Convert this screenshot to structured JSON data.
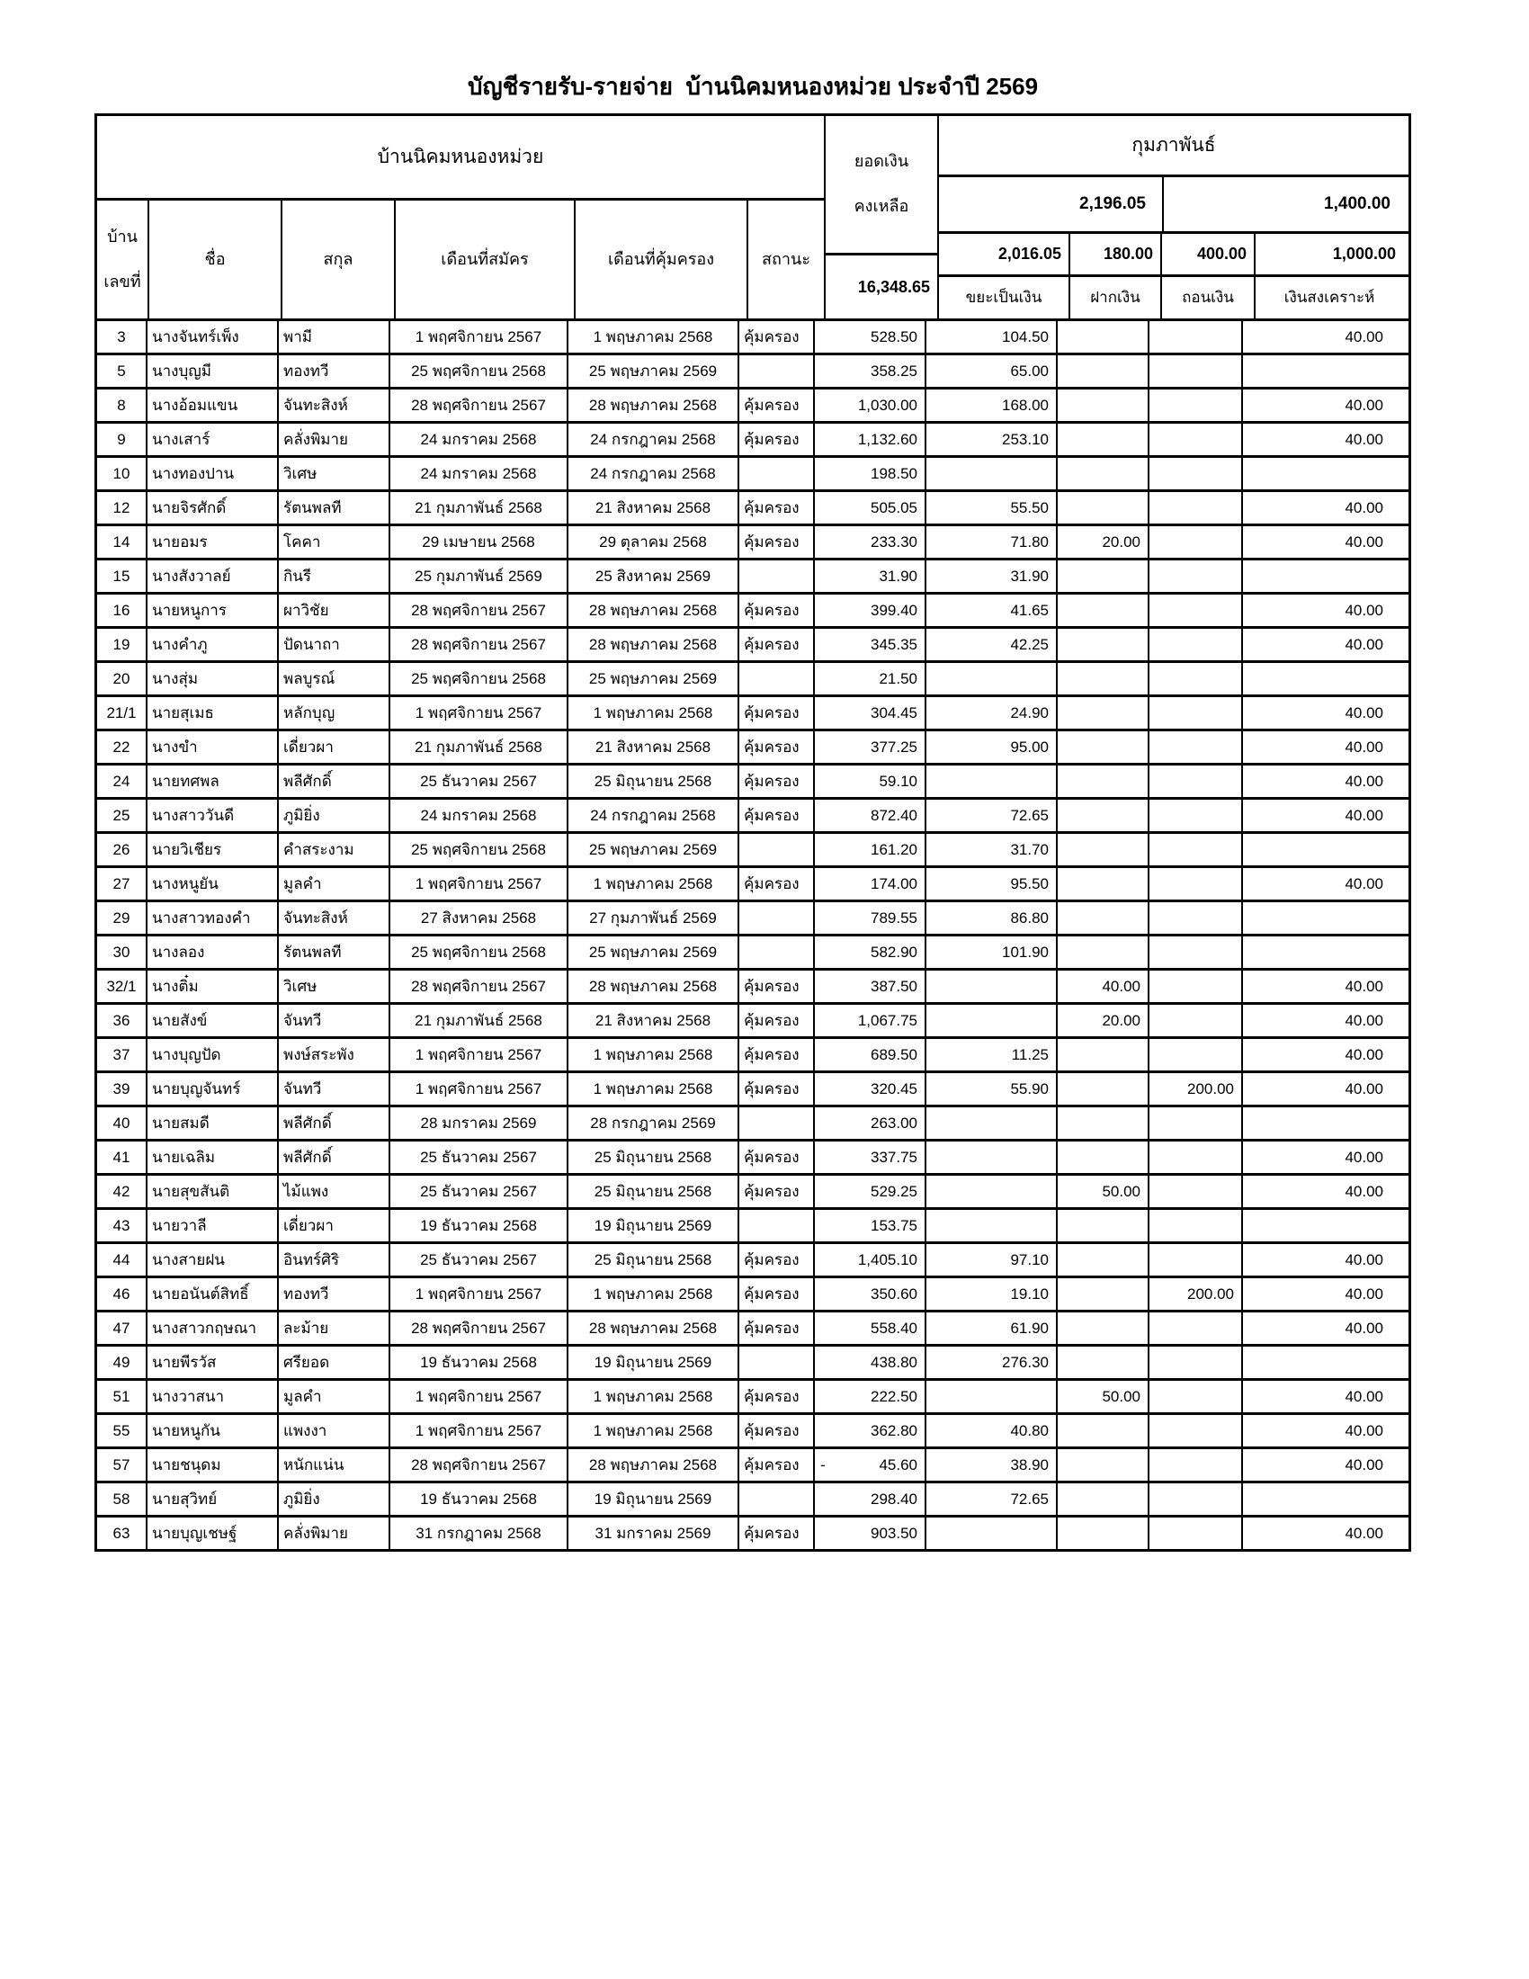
{
  "title": "บัญชีรายรับ-รายจ่าย  บ้านนิคมหนองหม่วย ประจำปี 2569",
  "table": {
    "group_header": "บ้านนิคมหนองหม่วย",
    "columns": {
      "house_line1": "บ้าน",
      "house_line2": "เลขที่",
      "first_name": "ชื่อ",
      "surname": "สกุล",
      "apply_month": "เดือนที่สมัคร",
      "cover_month": "เดือนที่คุ้มครอง",
      "status": "สถานะ"
    },
    "balance": {
      "label_line1": "ยอดเงิน",
      "label_line2": "คงเหลือ",
      "total": "16,348.65"
    },
    "month": {
      "name": "กุมภาพันธ์",
      "income_total": "2,196.05",
      "expense_total": "1,400.00",
      "sub": [
        "2,016.05",
        "180.00",
        "400.00",
        "1,000.00"
      ],
      "labels": [
        "ขยะเป็นเงิน",
        "ฝากเงิน",
        "ถอนเงิน",
        "เงินสงเคราะห์"
      ]
    },
    "status_value_protected": "คุ้มครอง",
    "rows": [
      {
        "no": "3",
        "first": "นางจันทร์เพ็ง",
        "last": "พามี",
        "apply": "1 พฤศจิกายน 2567",
        "cover": "1 พฤษภาคม 2568",
        "status": "คุ้มครอง",
        "balance_prefix": "",
        "balance": "528.50",
        "waste": "104.50",
        "deposit": "",
        "withdraw": "",
        "welfare": "40.00"
      },
      {
        "no": "5",
        "first": "นางบุญมี",
        "last": "ทองทวี",
        "apply": "25 พฤศจิกายน 2568",
        "cover": "25 พฤษภาคม 2569",
        "status": "",
        "balance_prefix": "",
        "balance": "358.25",
        "waste": "65.00",
        "deposit": "",
        "withdraw": "",
        "welfare": ""
      },
      {
        "no": "8",
        "first": "นางอ้อมแขน",
        "last": "จันทะสิงห์",
        "apply": "28 พฤศจิกายน 2567",
        "cover": "28 พฤษภาคม 2568",
        "status": "คุ้มครอง",
        "balance_prefix": "",
        "balance": "1,030.00",
        "waste": "168.00",
        "deposit": "",
        "withdraw": "",
        "welfare": "40.00"
      },
      {
        "no": "9",
        "first": "นางเสาร์",
        "last": "คลั่งพิมาย",
        "apply": "24 มกราคม 2568",
        "cover": "24 กรกฎาคม 2568",
        "status": "คุ้มครอง",
        "balance_prefix": "",
        "balance": "1,132.60",
        "waste": "253.10",
        "deposit": "",
        "withdraw": "",
        "welfare": "40.00"
      },
      {
        "no": "10",
        "first": "นางทองปาน",
        "last": "วิเศษ",
        "apply": "24 มกราคม 2568",
        "cover": "24 กรกฎาคม 2568",
        "status": "",
        "balance_prefix": "",
        "balance": "198.50",
        "waste": "",
        "deposit": "",
        "withdraw": "",
        "welfare": ""
      },
      {
        "no": "12",
        "first": "นายจิรศักดิ์",
        "last": "รัตนพลที",
        "apply": "21 กุมภาพันธ์ 2568",
        "cover": "21 สิงหาคม 2568",
        "status": "คุ้มครอง",
        "balance_prefix": "",
        "balance": "505.05",
        "waste": "55.50",
        "deposit": "",
        "withdraw": "",
        "welfare": "40.00"
      },
      {
        "no": "14",
        "first": "นายอมร",
        "last": "โคคา",
        "apply": "29 เมษายน 2568",
        "cover": "29 ตุลาคม 2568",
        "status": "คุ้มครอง",
        "balance_prefix": "",
        "balance": "233.30",
        "waste": "71.80",
        "deposit": "20.00",
        "withdraw": "",
        "welfare": "40.00"
      },
      {
        "no": "15",
        "first": "นางสังวาลย์",
        "last": "กินรี",
        "apply": "25 กุมภาพันธ์ 2569",
        "cover": "25 สิงหาคม 2569",
        "status": "",
        "balance_prefix": "",
        "balance": "31.90",
        "waste": "31.90",
        "deposit": "",
        "withdraw": "",
        "welfare": ""
      },
      {
        "no": "16",
        "first": "นายหนูการ",
        "last": "ผาวิชัย",
        "apply": "28 พฤศจิกายน 2567",
        "cover": "28 พฤษภาคม 2568",
        "status": "คุ้มครอง",
        "balance_prefix": "",
        "balance": "399.40",
        "waste": "41.65",
        "deposit": "",
        "withdraw": "",
        "welfare": "40.00"
      },
      {
        "no": "19",
        "first": "นางคำภู",
        "last": "ปัดนาถา",
        "apply": "28 พฤศจิกายน 2567",
        "cover": "28 พฤษภาคม 2568",
        "status": "คุ้มครอง",
        "balance_prefix": "",
        "balance": "345.35",
        "waste": "42.25",
        "deposit": "",
        "withdraw": "",
        "welfare": "40.00"
      },
      {
        "no": "20",
        "first": "นางสุ่ม",
        "last": "พลบูรณ์",
        "apply": "25 พฤศจิกายน 2568",
        "cover": "25 พฤษภาคม 2569",
        "status": "",
        "balance_prefix": "",
        "balance": "21.50",
        "waste": "",
        "deposit": "",
        "withdraw": "",
        "welfare": ""
      },
      {
        "no": "21/1",
        "first": "นายสุเมธ",
        "last": "หลักบุญ",
        "apply": "1 พฤศจิกายน 2567",
        "cover": "1 พฤษภาคม 2568",
        "status": "คุ้มครอง",
        "balance_prefix": "",
        "balance": "304.45",
        "waste": "24.90",
        "deposit": "",
        "withdraw": "",
        "welfare": "40.00"
      },
      {
        "no": "22",
        "first": "นางขำ",
        "last": "เดี่ยวผา",
        "apply": "21 กุมภาพันธ์ 2568",
        "cover": "21 สิงหาคม 2568",
        "status": "คุ้มครอง",
        "balance_prefix": "",
        "balance": "377.25",
        "waste": "95.00",
        "deposit": "",
        "withdraw": "",
        "welfare": "40.00"
      },
      {
        "no": "24",
        "first": "นายทศพล",
        "last": "พลีศักดิ์",
        "apply": "25 ธันวาคม 2567",
        "cover": "25 มิถุนายน 2568",
        "status": "คุ้มครอง",
        "balance_prefix": "",
        "balance": "59.10",
        "waste": "",
        "deposit": "",
        "withdraw": "",
        "welfare": "40.00"
      },
      {
        "no": "25",
        "first": "นางสาววันดี",
        "last": "ภูมิยิ่ง",
        "apply": "24 มกราคม 2568",
        "cover": "24 กรกฎาคม 2568",
        "status": "คุ้มครอง",
        "balance_prefix": "",
        "balance": "872.40",
        "waste": "72.65",
        "deposit": "",
        "withdraw": "",
        "welfare": "40.00"
      },
      {
        "no": "26",
        "first": "นายวิเชียร",
        "last": "คำสระงาม",
        "apply": "25 พฤศจิกายน 2568",
        "cover": "25 พฤษภาคม 2569",
        "status": "",
        "balance_prefix": "",
        "balance": "161.20",
        "waste": "31.70",
        "deposit": "",
        "withdraw": "",
        "welfare": ""
      },
      {
        "no": "27",
        "first": "นางหนูยัน",
        "last": "มูลคำ",
        "apply": "1 พฤศจิกายน 2567",
        "cover": "1 พฤษภาคม 2568",
        "status": "คุ้มครอง",
        "balance_prefix": "",
        "balance": "174.00",
        "waste": "95.50",
        "deposit": "",
        "withdraw": "",
        "welfare": "40.00"
      },
      {
        "no": "29",
        "first": "นางสาวทองคำ",
        "last": "จันทะสิงห์",
        "apply": "27 สิงหาคม 2568",
        "cover": "27 กุมภาพันธ์ 2569",
        "status": "",
        "balance_prefix": "",
        "balance": "789.55",
        "waste": "86.80",
        "deposit": "",
        "withdraw": "",
        "welfare": ""
      },
      {
        "no": "30",
        "first": "นางลอง",
        "last": "รัตนพลที",
        "apply": "25 พฤศจิกายน 2568",
        "cover": "25 พฤษภาคม 2569",
        "status": "",
        "balance_prefix": "",
        "balance": "582.90",
        "waste": "101.90",
        "deposit": "",
        "withdraw": "",
        "welfare": ""
      },
      {
        "no": "32/1",
        "first": "นางติ๋ม",
        "last": "วิเศษ",
        "apply": "28 พฤศจิกายน 2567",
        "cover": "28 พฤษภาคม 2568",
        "status": "คุ้มครอง",
        "balance_prefix": "",
        "balance": "387.50",
        "waste": "",
        "deposit": "40.00",
        "withdraw": "",
        "welfare": "40.00"
      },
      {
        "no": "36",
        "first": "นายสังข์",
        "last": "จันทวี",
        "apply": "21 กุมภาพันธ์ 2568",
        "cover": "21 สิงหาคม 2568",
        "status": "คุ้มครอง",
        "balance_prefix": "",
        "balance": "1,067.75",
        "waste": "",
        "deposit": "20.00",
        "withdraw": "",
        "welfare": "40.00"
      },
      {
        "no": "37",
        "first": "นางบุญปัด",
        "last": "พงษ์สระพัง",
        "apply": "1 พฤศจิกายน 2567",
        "cover": "1 พฤษภาคม 2568",
        "status": "คุ้มครอง",
        "balance_prefix": "",
        "balance": "689.50",
        "waste": "11.25",
        "deposit": "",
        "withdraw": "",
        "welfare": "40.00"
      },
      {
        "no": "39",
        "first": "นายบุญจันทร์",
        "last": "จันทวี",
        "apply": "1 พฤศจิกายน 2567",
        "cover": "1 พฤษภาคม 2568",
        "status": "คุ้มครอง",
        "balance_prefix": "",
        "balance": "320.45",
        "waste": "55.90",
        "deposit": "",
        "withdraw": "200.00",
        "welfare": "40.00"
      },
      {
        "no": "40",
        "first": "นายสมดี",
        "last": "พลีศักดิ์",
        "apply": "28 มกราคม 2569",
        "cover": "28 กรกฎาคม 2569",
        "status": "",
        "balance_prefix": "",
        "balance": "263.00",
        "waste": "",
        "deposit": "",
        "withdraw": "",
        "welfare": ""
      },
      {
        "no": "41",
        "first": "นายเฉลิม",
        "last": "พลีศักดิ์",
        "apply": "25 ธันวาคม 2567",
        "cover": "25 มิถุนายน 2568",
        "status": "คุ้มครอง",
        "balance_prefix": "",
        "balance": "337.75",
        "waste": "",
        "deposit": "",
        "withdraw": "",
        "welfare": "40.00"
      },
      {
        "no": "42",
        "first": "นายสุขสันติ",
        "last": "ไม้แพง",
        "apply": "25 ธันวาคม 2567",
        "cover": "25 มิถุนายน 2568",
        "status": "คุ้มครอง",
        "balance_prefix": "",
        "balance": "529.25",
        "waste": "",
        "deposit": "50.00",
        "withdraw": "",
        "welfare": "40.00"
      },
      {
        "no": "43",
        "first": "นายวาลี",
        "last": "เดี่ยวผา",
        "apply": "19 ธันวาคม 2568",
        "cover": "19 มิถุนายน 2569",
        "status": "",
        "balance_prefix": "",
        "balance": "153.75",
        "waste": "",
        "deposit": "",
        "withdraw": "",
        "welfare": ""
      },
      {
        "no": "44",
        "first": "นางสายฝน",
        "last": "อินทร์ศิริ",
        "apply": "25 ธันวาคม 2567",
        "cover": "25 มิถุนายน 2568",
        "status": "คุ้มครอง",
        "balance_prefix": "",
        "balance": "1,405.10",
        "waste": "97.10",
        "deposit": "",
        "withdraw": "",
        "welfare": "40.00"
      },
      {
        "no": "46",
        "first": "นายอนันต์สิทธิ์",
        "last": "ทองทวี",
        "apply": "1 พฤศจิกายน 2567",
        "cover": "1 พฤษภาคม 2568",
        "status": "คุ้มครอง",
        "balance_prefix": "",
        "balance": "350.60",
        "waste": "19.10",
        "deposit": "",
        "withdraw": "200.00",
        "welfare": "40.00"
      },
      {
        "no": "47",
        "first": "นางสาวกฤษณา",
        "last": "ละม้าย",
        "apply": "28 พฤศจิกายน 2567",
        "cover": "28 พฤษภาคม 2568",
        "status": "คุ้มครอง",
        "balance_prefix": "",
        "balance": "558.40",
        "waste": "61.90",
        "deposit": "",
        "withdraw": "",
        "welfare": "40.00"
      },
      {
        "no": "49",
        "first": "นายพีรวัส",
        "last": "ศรียอด",
        "apply": "19 ธันวาคม 2568",
        "cover": "19 มิถุนายน 2569",
        "status": "",
        "balance_prefix": "",
        "balance": "438.80",
        "waste": "276.30",
        "deposit": "",
        "withdraw": "",
        "welfare": ""
      },
      {
        "no": "51",
        "first": "นางวาสนา",
        "last": "มูลคำ",
        "apply": "1 พฤศจิกายน 2567",
        "cover": "1 พฤษภาคม 2568",
        "status": "คุ้มครอง",
        "balance_prefix": "",
        "balance": "222.50",
        "waste": "",
        "deposit": "50.00",
        "withdraw": "",
        "welfare": "40.00"
      },
      {
        "no": "55",
        "first": "นายหนูกัน",
        "last": "แพงงา",
        "apply": "1 พฤศจิกายน 2567",
        "cover": "1 พฤษภาคม 2568",
        "status": "คุ้มครอง",
        "balance_prefix": "",
        "balance": "362.80",
        "waste": "40.80",
        "deposit": "",
        "withdraw": "",
        "welfare": "40.00"
      },
      {
        "no": "57",
        "first": "นายชนุดม",
        "last": "หนักแน่น",
        "apply": "28 พฤศจิกายน 2567",
        "cover": "28 พฤษภาคม 2568",
        "status": "คุ้มครอง",
        "balance_prefix": "-",
        "balance": "45.60",
        "waste": "38.90",
        "deposit": "",
        "withdraw": "",
        "welfare": "40.00"
      },
      {
        "no": "58",
        "first": "นายสุวิทย์",
        "last": "ภูมิยิ่ง",
        "apply": "19 ธันวาคม 2568",
        "cover": "19 มิถุนายน 2569",
        "status": "",
        "balance_prefix": "",
        "balance": "298.40",
        "waste": "72.65",
        "deposit": "",
        "withdraw": "",
        "welfare": ""
      },
      {
        "no": "63",
        "first": "นายบุญเชษฐ์",
        "last": "คลั่งพิมาย",
        "apply": "31 กรกฎาคม 2568",
        "cover": "31 มกราคม 2569",
        "status": "คุ้มครอง",
        "balance_prefix": "",
        "balance": "903.50",
        "waste": "",
        "deposit": "",
        "withdraw": "",
        "welfare": "40.00"
      }
    ]
  },
  "colors": {
    "border": "#000000",
    "background": "#ffffff",
    "text": "#000000"
  }
}
